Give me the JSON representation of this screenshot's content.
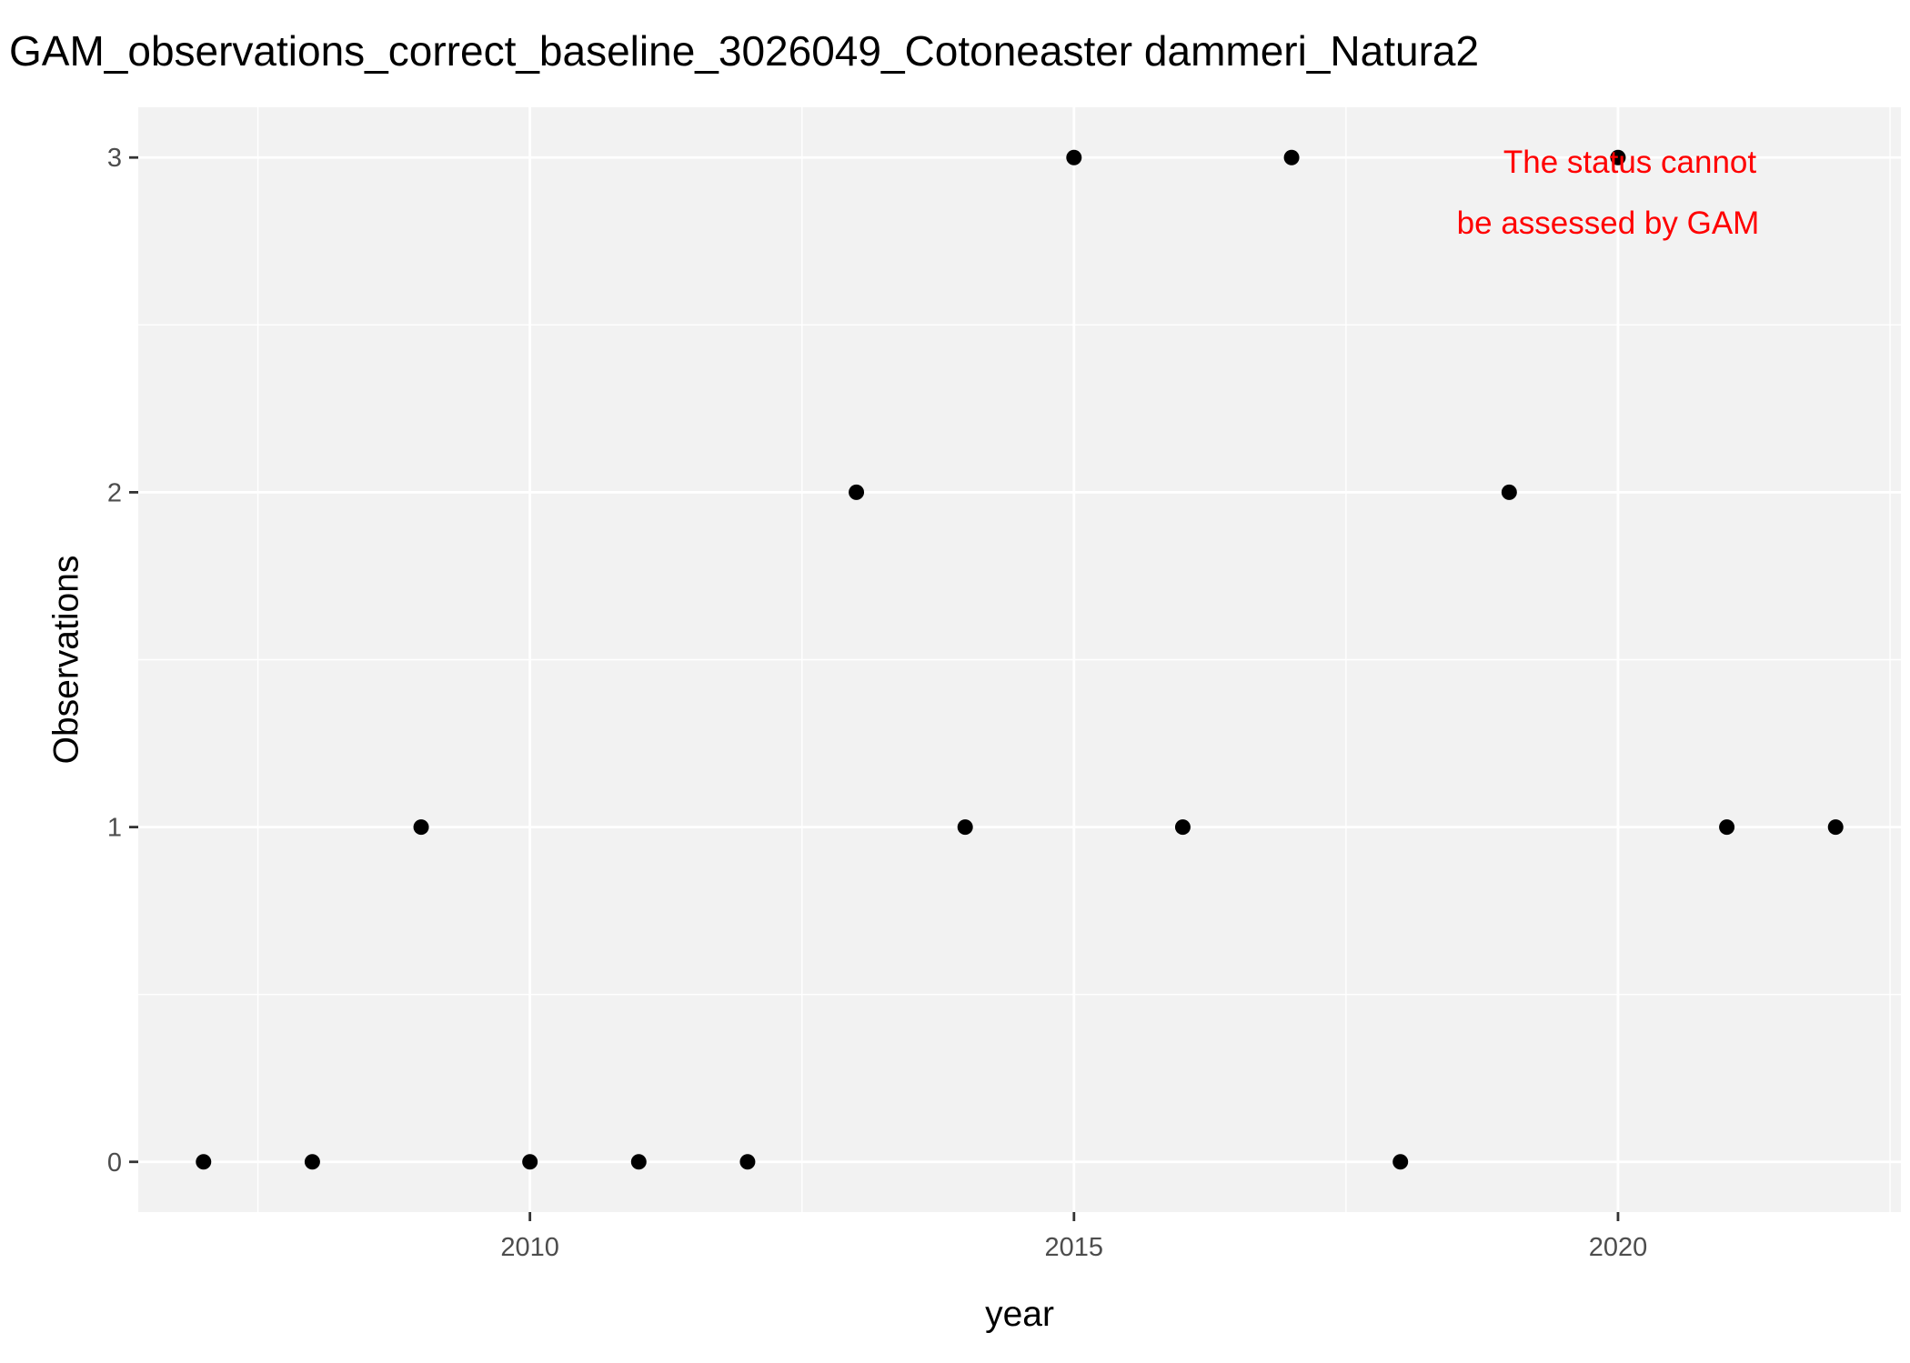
{
  "chart_data": {
    "type": "scatter",
    "title": "GAM_observations_correct_baseline_3026049_Cotoneaster dammeri_Natura2",
    "xlabel": "year",
    "ylabel": "Observations",
    "xlim": [
      2006.4,
      2022.6
    ],
    "ylim": [
      -0.15,
      3.15
    ],
    "x_ticks": [
      2010,
      2015,
      2020
    ],
    "x_tick_labels": [
      "2010",
      "2015",
      "2020"
    ],
    "y_ticks": [
      0,
      1,
      2,
      3
    ],
    "y_tick_labels": [
      "0",
      "1",
      "2",
      "3"
    ],
    "grid": true,
    "panel_color": "#f2f2f2",
    "grid_color": "#ffffff",
    "point_color": "#000000",
    "annotation": {
      "lines": [
        "The status cannot",
        "be assessed by GAM"
      ],
      "color": "#ff0000"
    },
    "points": [
      {
        "x": 2007,
        "y": 0
      },
      {
        "x": 2008,
        "y": 0
      },
      {
        "x": 2009,
        "y": 1
      },
      {
        "x": 2010,
        "y": 0
      },
      {
        "x": 2011,
        "y": 0
      },
      {
        "x": 2012,
        "y": 0
      },
      {
        "x": 2013,
        "y": 2
      },
      {
        "x": 2014,
        "y": 1
      },
      {
        "x": 2015,
        "y": 3
      },
      {
        "x": 2016,
        "y": 1
      },
      {
        "x": 2017,
        "y": 3
      },
      {
        "x": 2018,
        "y": 0
      },
      {
        "x": 2019,
        "y": 2
      },
      {
        "x": 2020,
        "y": 3
      },
      {
        "x": 2021,
        "y": 1
      },
      {
        "x": 2022,
        "y": 1
      }
    ]
  }
}
